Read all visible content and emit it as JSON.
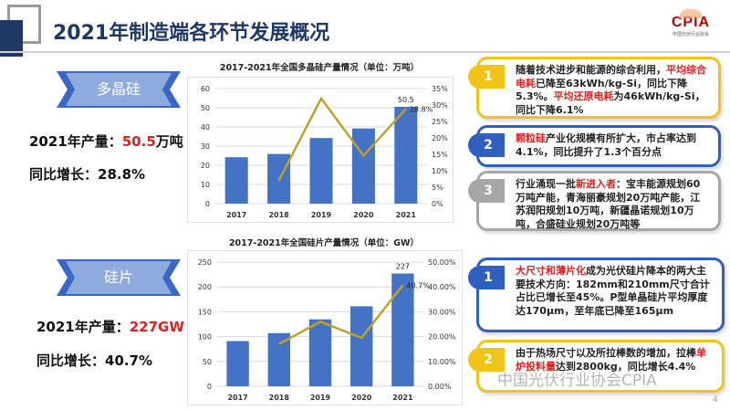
{
  "header": {
    "title": "2021年制造端各环节发展概况",
    "logo_text": "CPIA",
    "logo_sub": "中国光伏行业协会"
  },
  "colors": {
    "navy": "#1f3864",
    "bar": "#4472c4",
    "line": "#bfa12a",
    "highlight": "#e02020",
    "yellow": "#f2c417",
    "blue": "#2f5fbf",
    "gray": "#a6a6a6"
  },
  "sections": [
    {
      "label": "多晶硅",
      "production_label": "2021年产量：",
      "production_value": "50.5",
      "production_unit": "万吨",
      "growth": "同比增长：28.8%"
    },
    {
      "label": "硅片",
      "production_label": "2021年产量：",
      "production_value": "227GW",
      "production_unit": "",
      "growth": "同比增长：40.7%"
    }
  ],
  "chart_data": [
    {
      "type": "bar",
      "title": "2017-2021年全国多晶硅产量情况（单位：万吨）",
      "categories": [
        "2017",
        "2018",
        "2019",
        "2020",
        "2021"
      ],
      "series": [
        {
          "type": "bar",
          "axis": "left",
          "values": [
            24.2,
            25.9,
            34.2,
            39.2,
            50.5
          ]
        },
        {
          "type": "line",
          "axis": "right",
          "values": [
            null,
            7.0,
            32.0,
            14.6,
            28.8
          ]
        }
      ],
      "ylim": [
        0,
        60
      ],
      "yticks": [
        "0",
        "10",
        "20",
        "30",
        "40",
        "50",
        "60"
      ],
      "y2lim": [
        0,
        35
      ],
      "y2ticks": [
        "0%",
        "5%",
        "10%",
        "15%",
        "20%",
        "25%",
        "30%",
        "35%"
      ],
      "data_labels": {
        "bar_last": "50.5",
        "line_last": "28.8%"
      },
      "grid": true
    },
    {
      "type": "bar",
      "title": "2017-2021年全国硅片产量情况（单位：GW）",
      "categories": [
        "2017",
        "2018",
        "2019",
        "2020",
        "2021"
      ],
      "series": [
        {
          "type": "bar",
          "axis": "left",
          "values": [
            91,
            107,
            134.7,
            161,
            227
          ]
        },
        {
          "type": "line",
          "axis": "right",
          "values": [
            null,
            17.0,
            26.0,
            19.5,
            40.7
          ]
        }
      ],
      "ylim": [
        0,
        250
      ],
      "yticks": [
        "0",
        "50",
        "100",
        "150",
        "200",
        "250"
      ],
      "y2lim": [
        0,
        50
      ],
      "y2ticks": [
        "0.00%",
        "10.00%",
        "20.00%",
        "30.00%",
        "40.00%",
        "50.00%"
      ],
      "data_labels": {
        "bar_last": "227",
        "line_last": "40.7%"
      },
      "grid": true
    }
  ],
  "notes": [
    {
      "num": "1",
      "color": "yellow",
      "segments": [
        {
          "t": "随着技术进步和能源的综合利用，"
        },
        {
          "t": "平均综合电耗",
          "red": true
        },
        {
          "t": "已降至63kWh/kg-Si，同比下降5.3%。"
        },
        {
          "t": "平均还原电耗",
          "red": true
        },
        {
          "t": "为46kWh/kg-Si，同比下降6.1%"
        }
      ]
    },
    {
      "num": "2",
      "color": "blue",
      "segments": [
        {
          "t": "颗粒硅",
          "red": true
        },
        {
          "t": "产业化规模有所扩大，市占率达到4.1%，同比提升了1.3个百分点"
        }
      ]
    },
    {
      "num": "3",
      "color": "gray",
      "segments": [
        {
          "t": "行业涌现一批"
        },
        {
          "t": "新进入者",
          "red": true
        },
        {
          "t": "：宝丰能源规划60万吨产能，青海丽豪规划20万吨产能，江苏润阳规划10万吨，新疆晶诺规划10万吨，合盛硅业规划20万吨等"
        }
      ]
    },
    {
      "num": "1",
      "color": "blue",
      "segments": [
        {
          "t": "大尺寸和薄片化",
          "red": true
        },
        {
          "t": "成为光伏硅片降本的两大主要技术方向：182mm和210mm尺寸合计占比已增长至45%。P型单晶硅片平均厚度达170μm，至年底已降至165μm"
        }
      ]
    },
    {
      "num": "2",
      "color": "yellow",
      "segments": [
        {
          "t": "由于热场尺寸以及所拉棒数的增加，拉棒"
        },
        {
          "t": "单炉投料量",
          "red": true
        },
        {
          "t": "达到2800kg，同比增长4.4%"
        }
      ]
    }
  ],
  "watermark": "中国光伏行业协会CPIA",
  "page_number": "4"
}
